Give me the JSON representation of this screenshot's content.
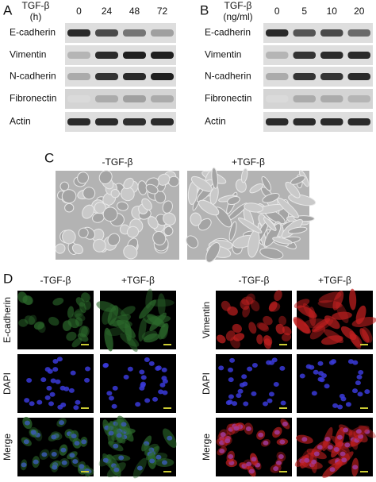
{
  "panel_a": {
    "label": "A",
    "treatment": "TGF-β",
    "unit": "(h)",
    "columns": [
      "0",
      "24",
      "48",
      "72"
    ],
    "rows": [
      "E-cadherin",
      "Vimentin",
      "N-cadherin",
      "Fibronectin",
      "Actin"
    ]
  },
  "panel_b": {
    "label": "B",
    "treatment": "TGF-β",
    "unit": "(ng/ml)",
    "columns": [
      "0",
      "5",
      "10",
      "20"
    ],
    "rows": [
      "E-cadherin",
      "Vimentin",
      "N-cadherin",
      "Fibronectin",
      "Actin"
    ]
  },
  "panel_c": {
    "label": "C",
    "conditions": [
      "-TGF-β",
      "+TGF-β"
    ]
  },
  "panel_d": {
    "label": "D",
    "left": {
      "conditions": [
        "-TGF-β",
        "+TGF-β"
      ],
      "rows": [
        "E-cadherin",
        "DAPI",
        "Merge"
      ]
    },
    "right": {
      "conditions": [
        "-TGF-β",
        "+TGF-β"
      ],
      "rows": [
        "Vimentin",
        "DAPI",
        "Merge"
      ]
    }
  }
}
